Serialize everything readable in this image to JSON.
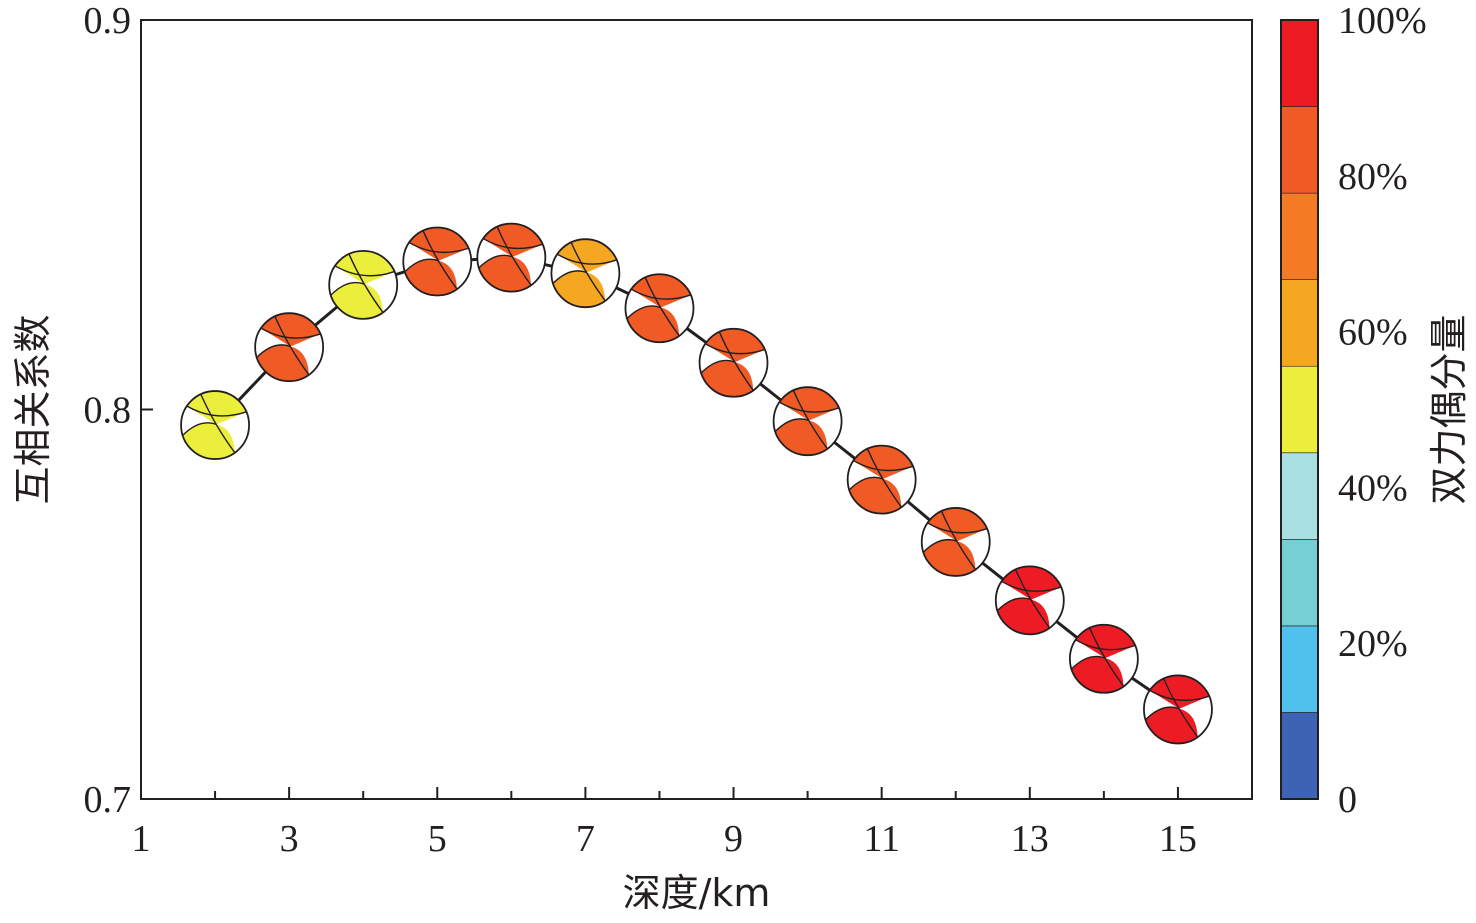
{
  "chart_data": {
    "type": "scatter",
    "title": "",
    "xlabel": "深度/km",
    "ylabel": "互相关系数",
    "xlim": [
      1,
      16
    ],
    "ylim": [
      0.7,
      0.9
    ],
    "x_ticks": [
      1,
      3,
      5,
      7,
      9,
      11,
      13,
      15
    ],
    "x_tick_labels": [
      "1",
      "3",
      "5",
      "7",
      "9",
      "11",
      "13",
      "15"
    ],
    "y_ticks": [
      0.7,
      0.8,
      0.9
    ],
    "y_tick_labels": [
      "0.7",
      "0.8",
      "0.9"
    ],
    "grid": false,
    "marker": "focal-mechanism-beachball",
    "series": [
      {
        "x": [
          2,
          3,
          4,
          5,
          6,
          7,
          8,
          9,
          10,
          11,
          12,
          13,
          14,
          15
        ],
        "y": [
          0.796,
          0.816,
          0.832,
          0.838,
          0.839,
          0.835,
          0.826,
          0.812,
          0.797,
          0.782,
          0.766,
          0.751,
          0.736,
          0.723
        ],
        "double_couple_percent": [
          45,
          85,
          45,
          85,
          80,
          65,
          80,
          85,
          85,
          85,
          85,
          95,
          95,
          95
        ]
      }
    ],
    "colorbar": {
      "label": "双力偶分量",
      "range": [
        0,
        100
      ],
      "tick_values": [
        0,
        20,
        40,
        60,
        80,
        100
      ],
      "tick_labels": [
        "0",
        "20%",
        "40%",
        "60%",
        "80%",
        "100%"
      ],
      "colors": [
        "#3c63b4",
        "#4fc1ec",
        "#77cfd6",
        "#a9e1e3",
        "#ecee3c",
        "#f6a722",
        "#f47a24",
        "#ef5a25",
        "#ed1c24"
      ]
    }
  }
}
